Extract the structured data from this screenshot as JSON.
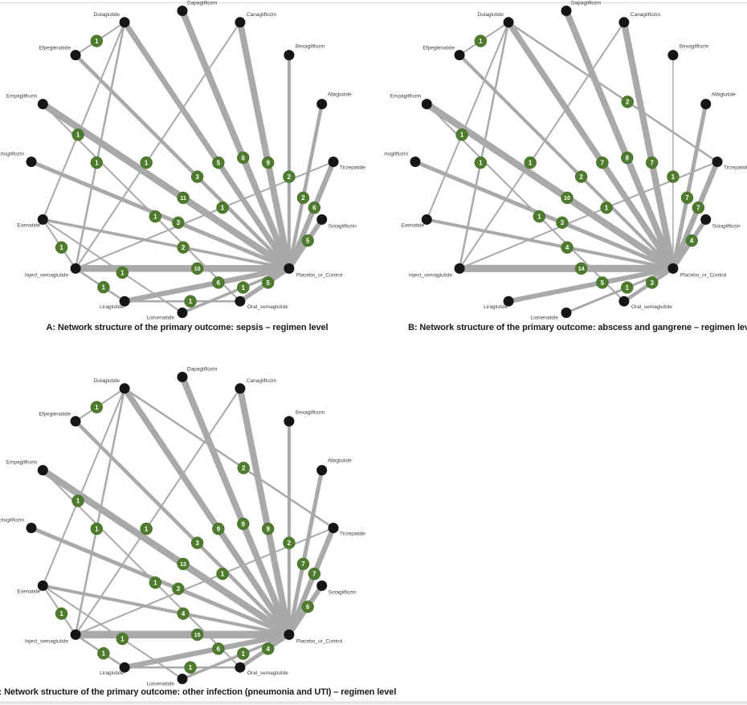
{
  "colors": {
    "background": "#ffffff",
    "edge": "#a9a9a9",
    "node": "#151515",
    "badge_fill": "#4f7b2e",
    "badge_text": "#ffffff",
    "label_text": "#3d3d3d",
    "caption_text": "#1a1a1a",
    "top_border": "#dcdcdc",
    "bottom_bar": "#e6e6e6"
  },
  "treatments": [
    {
      "label": "Dapagliflozin",
      "angle": 90
    },
    {
      "label": "Canagliflozin",
      "angle": 67.5
    },
    {
      "label": "Bexagliflozin",
      "angle": 45
    },
    {
      "label": "Albiglutide",
      "angle": 22.5
    },
    {
      "label": "Tirzepatide",
      "angle": 0
    },
    {
      "label": "Sotagliflozin",
      "angle": -22.5
    },
    {
      "label": "Placebo_or_Control",
      "angle": -45
    },
    {
      "label": "Oral_semaglutide",
      "angle": -67.5
    },
    {
      "label": "Lixisenatide",
      "angle": -90
    },
    {
      "label": "Liraglutide",
      "angle": -112.5
    },
    {
      "label": "Inject_semaglutide",
      "angle": -135
    },
    {
      "label": "Exenatide",
      "angle": -157.5
    },
    {
      "label": "Ertugliflozin",
      "angle": 180
    },
    {
      "label": "Empagliflozin",
      "angle": 157.5
    },
    {
      "label": "Efpeglenatide",
      "angle": 135
    },
    {
      "label": "Dulaglutide",
      "angle": 112.5
    }
  ],
  "edge_format": [
    "treatment_a",
    "treatment_b",
    "n_studies_badge",
    "line_width_px"
  ],
  "panels": [
    {
      "id": "A",
      "caption": "A: Network structure of the primary outcome: sepsis – regimen level",
      "edges": [
        [
          "Dulaglutide",
          "Efpeglenatide",
          1,
          2
        ],
        [
          "Dulaglutide",
          "Exenatide",
          1,
          2
        ],
        [
          "Dulaglutide",
          "Inject_semaglutide",
          1,
          2.5
        ],
        [
          "Canagliflozin",
          "Inject_semaglutide",
          1,
          2
        ],
        [
          "Inject_semaglutide",
          "Tirzepatide",
          1,
          2
        ],
        [
          "Empagliflozin",
          "Oral_semaglutide",
          1,
          2
        ],
        [
          "Exenatide",
          "Inject_semaglutide",
          1,
          2
        ],
        [
          "Exenatide",
          "Lixisenatide",
          1,
          2
        ],
        [
          "Inject_semaglutide",
          "Liraglutide",
          1,
          2.5
        ],
        [
          "Liraglutide",
          "Oral_semaglutide",
          1,
          2.5
        ],
        [
          "Dulaglutide",
          "Placebo_or_Control",
          5,
          7
        ],
        [
          "Dapagliflozin",
          "Placebo_or_Control",
          6,
          8
        ],
        [
          "Canagliflozin",
          "Placebo_or_Control",
          9,
          8
        ],
        [
          "Bexagliflozin",
          "Placebo_or_Control",
          2,
          4
        ],
        [
          "Albiglutide",
          "Placebo_or_Control",
          2,
          4.5
        ],
        [
          "Tirzepatide",
          "Placebo_or_Control",
          6,
          6.5
        ],
        [
          "Sotagliflozin",
          "Placebo_or_Control",
          5,
          6
        ],
        [
          "Efpeglenatide",
          "Placebo_or_Control",
          3,
          4.5
        ],
        [
          "Empagliflozin",
          "Placebo_or_Control",
          11,
          8.5
        ],
        [
          "Ertugliflozin",
          "Placebo_or_Control",
          3,
          5
        ],
        [
          "Exenatide",
          "Placebo_or_Control",
          2,
          3.5
        ],
        [
          "Inject_semaglutide",
          "Placebo_or_Control",
          10,
          8.5
        ],
        [
          "Liraglutide",
          "Placebo_or_Control",
          6,
          6.5
        ],
        [
          "Lixisenatide",
          "Placebo_or_Control",
          1,
          3.5
        ],
        [
          "Oral_semaglutide",
          "Placebo_or_Control",
          5,
          5.5
        ]
      ]
    },
    {
      "id": "B",
      "caption": "B: Network structure of the primary outcome: abscess and gangrene – regimen level",
      "edges": [
        [
          "Dulaglutide",
          "Efpeglenatide",
          1,
          2
        ],
        [
          "Dulaglutide",
          "Tirzepatide",
          2,
          2.5
        ],
        [
          "Dulaglutide",
          "Exenatide",
          1,
          2
        ],
        [
          "Dulaglutide",
          "Inject_semaglutide",
          1,
          2.5
        ],
        [
          "Canagliflozin",
          "Inject_semaglutide",
          1,
          2
        ],
        [
          "Inject_semaglutide",
          "Tirzepatide",
          1,
          2
        ],
        [
          "Empagliflozin",
          "Oral_semaglutide",
          1,
          2
        ],
        [
          "Dulaglutide",
          "Placebo_or_Control",
          7,
          7.5
        ],
        [
          "Dapagliflozin",
          "Placebo_or_Control",
          8,
          8
        ],
        [
          "Canagliflozin",
          "Placebo_or_Control",
          7,
          8
        ],
        [
          "Bexagliflozin",
          "Placebo_or_Control",
          1,
          1.5
        ],
        [
          "Albiglutide",
          "Placebo_or_Control",
          7,
          5
        ],
        [
          "Tirzepatide",
          "Placebo_or_Control",
          7,
          6.5
        ],
        [
          "Sotagliflozin",
          "Placebo_or_Control",
          4,
          5.5
        ],
        [
          "Efpeglenatide",
          "Placebo_or_Control",
          2,
          4
        ],
        [
          "Empagliflozin",
          "Placebo_or_Control",
          10,
          8.5
        ],
        [
          "Ertugliflozin",
          "Placebo_or_Control",
          3,
          5
        ],
        [
          "Exenatide",
          "Placebo_or_Control",
          4,
          4
        ],
        [
          "Inject_semaglutide",
          "Placebo_or_Control",
          14,
          9
        ],
        [
          "Liraglutide",
          "Placebo_or_Control",
          5,
          6
        ],
        [
          "Lixisenatide",
          "Placebo_or_Control",
          1,
          3
        ],
        [
          "Oral_semaglutide",
          "Placebo_or_Control",
          3,
          4.5
        ]
      ]
    },
    {
      "id": "C",
      "caption": "C: Network structure of the primary outcome: other infection (pneumonia and UTI) – regimen level",
      "edges": [
        [
          "Dulaglutide",
          "Efpeglenatide",
          1,
          2
        ],
        [
          "Dulaglutide",
          "Tirzepatide",
          2,
          2.5
        ],
        [
          "Dulaglutide",
          "Exenatide",
          1,
          2
        ],
        [
          "Dulaglutide",
          "Inject_semaglutide",
          1,
          2.5
        ],
        [
          "Canagliflozin",
          "Inject_semaglutide",
          1,
          2
        ],
        [
          "Inject_semaglutide",
          "Tirzepatide",
          1,
          2
        ],
        [
          "Empagliflozin",
          "Oral_semaglutide",
          1,
          2
        ],
        [
          "Exenatide",
          "Inject_semaglutide",
          1,
          2
        ],
        [
          "Exenatide",
          "Lixisenatide",
          1,
          2
        ],
        [
          "Inject_semaglutide",
          "Liraglutide",
          1,
          2.5
        ],
        [
          "Liraglutide",
          "Oral_semaglutide",
          1,
          2.5
        ],
        [
          "Dulaglutide",
          "Placebo_or_Control",
          9,
          7.5
        ],
        [
          "Dapagliflozin",
          "Placebo_or_Control",
          9,
          8
        ],
        [
          "Canagliflozin",
          "Placebo_or_Control",
          9,
          8
        ],
        [
          "Bexagliflozin",
          "Placebo_or_Control",
          2,
          4
        ],
        [
          "Albiglutide",
          "Placebo_or_Control",
          7,
          5
        ],
        [
          "Tirzepatide",
          "Placebo_or_Control",
          7,
          6.5
        ],
        [
          "Sotagliflozin",
          "Placebo_or_Control",
          6,
          6
        ],
        [
          "Efpeglenatide",
          "Placebo_or_Control",
          3,
          4.5
        ],
        [
          "Empagliflozin",
          "Placebo_or_Control",
          13,
          8.5
        ],
        [
          "Ertugliflozin",
          "Placebo_or_Control",
          3,
          5
        ],
        [
          "Exenatide",
          "Placebo_or_Control",
          4,
          4
        ],
        [
          "Inject_semaglutide",
          "Placebo_or_Control",
          15,
          9.5
        ],
        [
          "Liraglutide",
          "Placebo_or_Control",
          6,
          6.5
        ],
        [
          "Lixisenatide",
          "Placebo_or_Control",
          1,
          3.5
        ],
        [
          "Oral_semaglutide",
          "Placebo_or_Control",
          4,
          5
        ]
      ]
    }
  ]
}
